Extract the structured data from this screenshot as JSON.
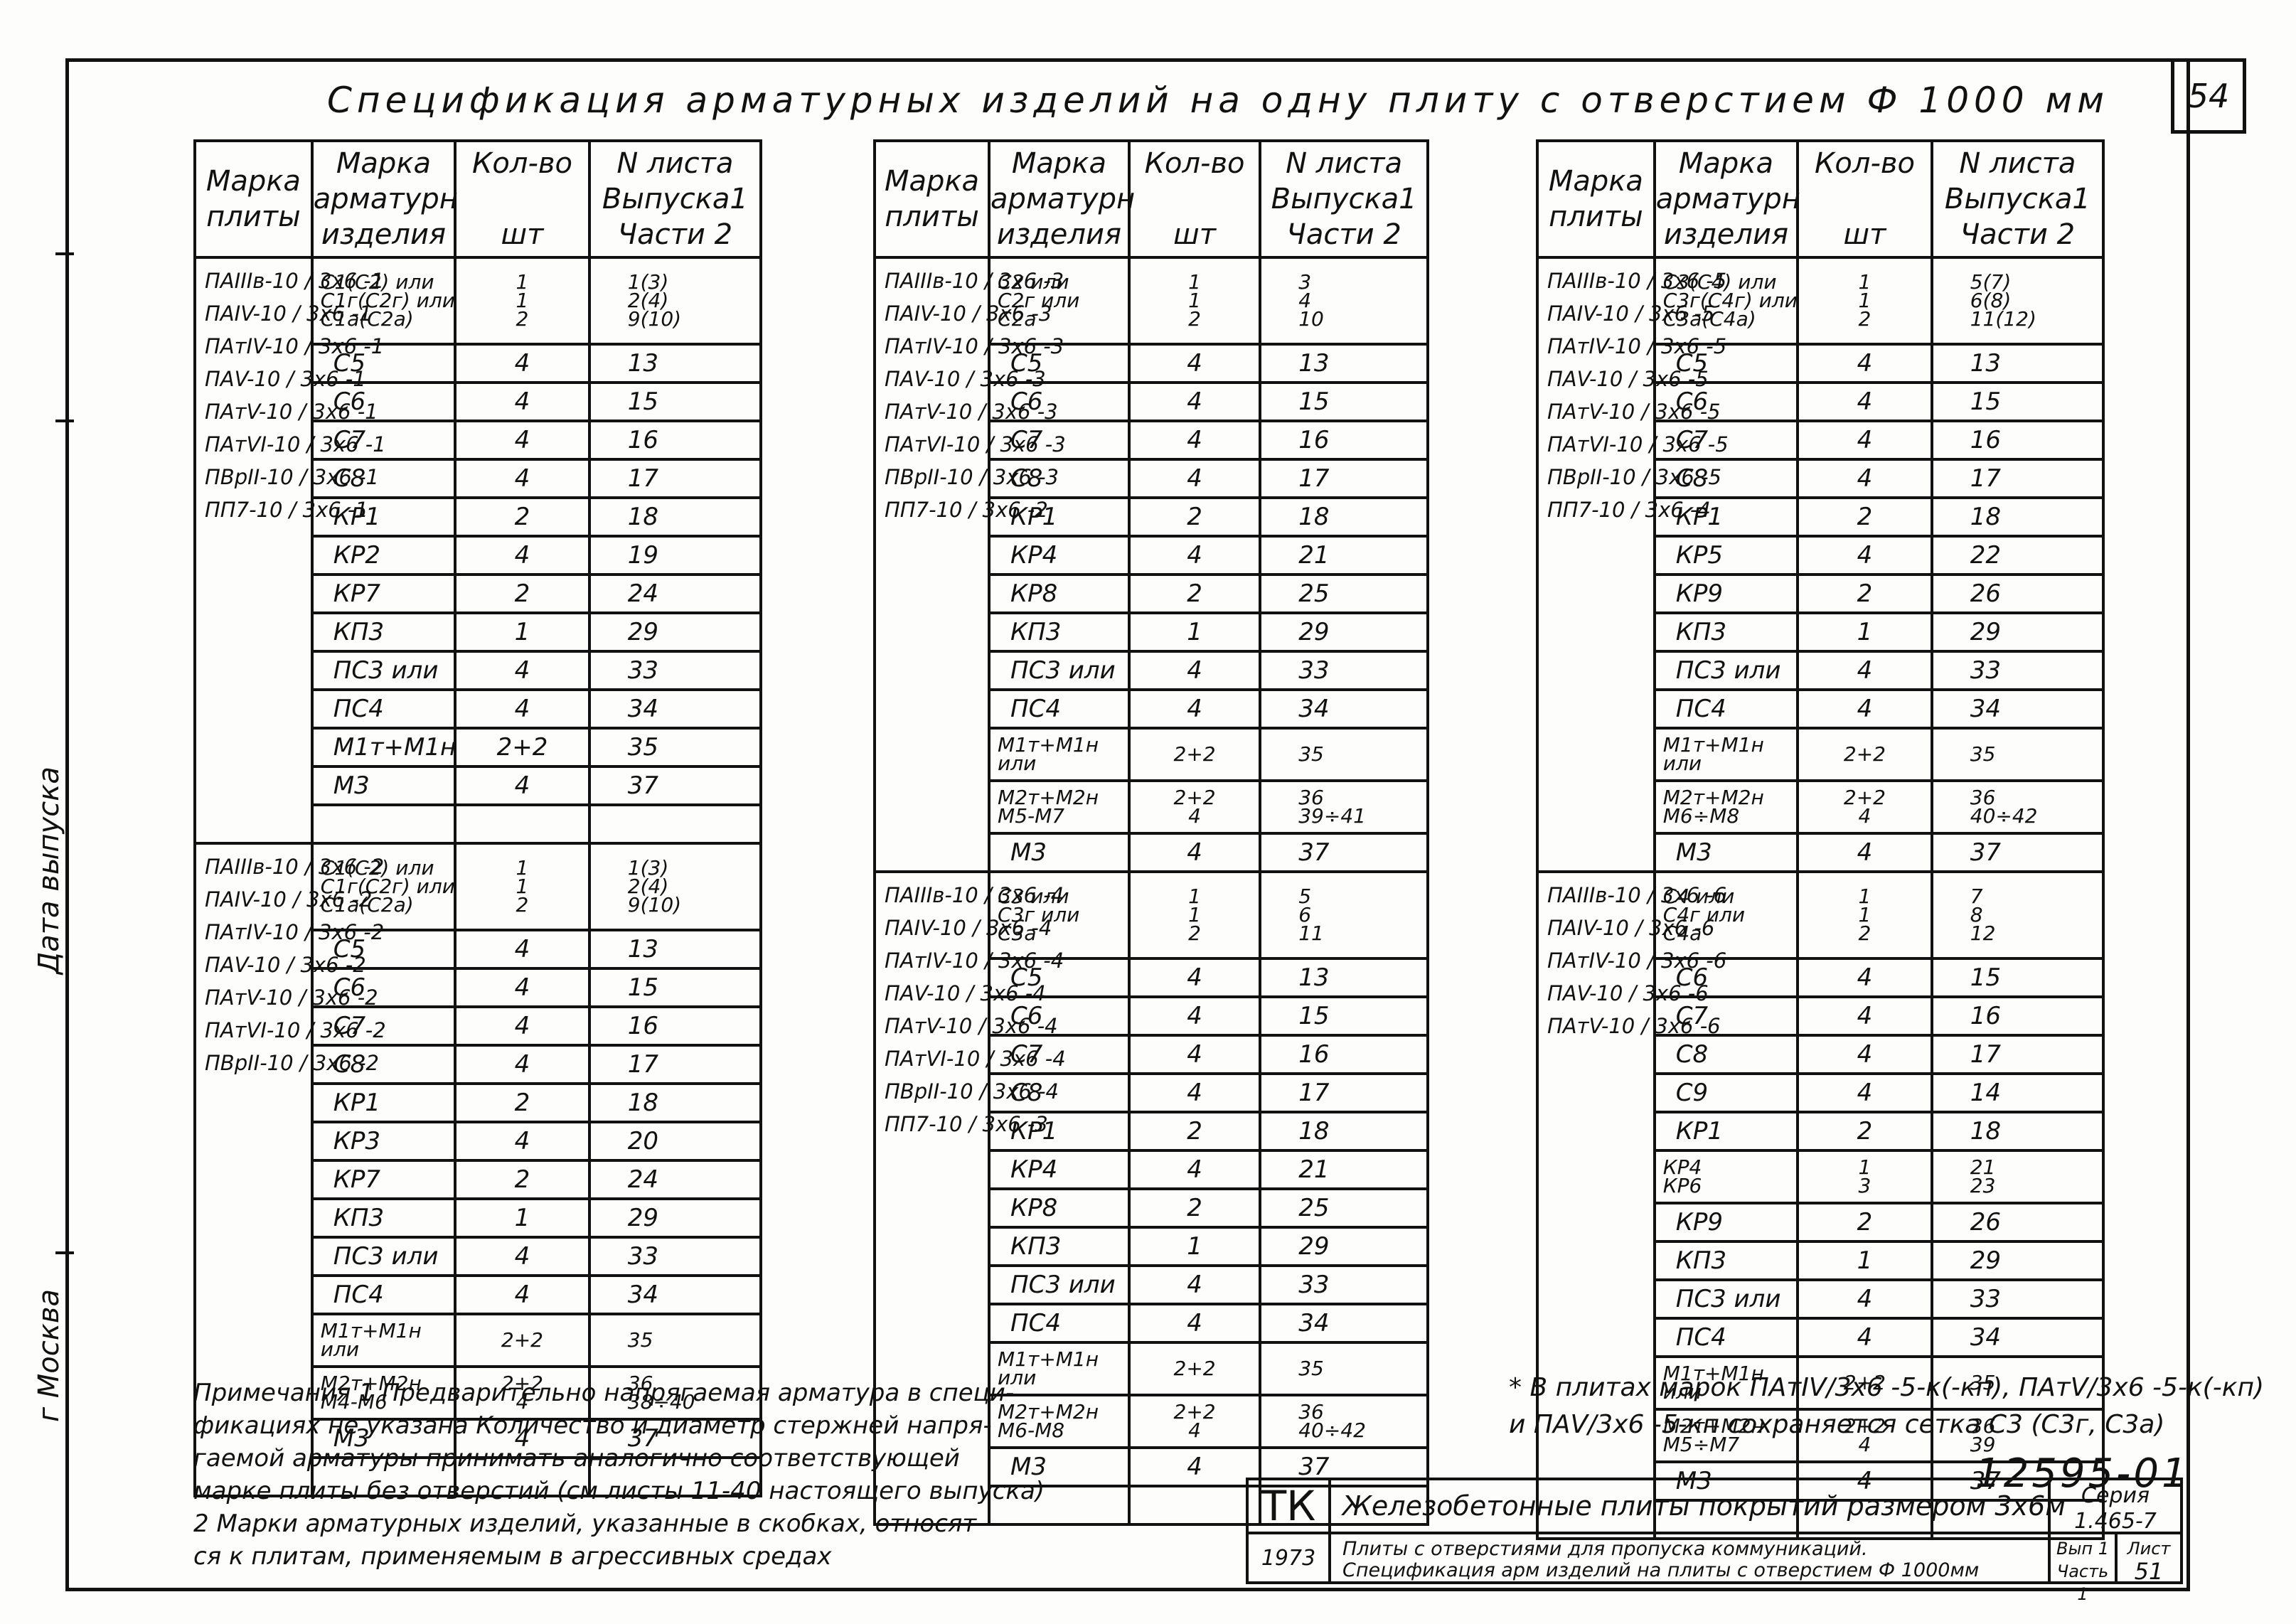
{
  "page_title": "Спецификация арматурных изделий на одну плиту с отверстием Ф 1000 мм",
  "sheet_corner": "54",
  "table_headers": {
    "plate_mark": [
      "Марка",
      "плиты"
    ],
    "rebar_mark": [
      "Марка",
      "арматурн",
      "изделия"
    ],
    "quantity": [
      "Кол-во",
      "шт"
    ],
    "sheet_no": [
      "N листа",
      "Выпуска1",
      "Части 2"
    ]
  },
  "tables": [
    {
      "groups": [
        {
          "plates": [
            "ПАIIIв-10 / 3х6 -1",
            "ПАIV-10 / 3х6 -1",
            "ПАтIV-10 / 3х6 -1",
            "ПАV-10 / 3х6 -1",
            "ПАтV-10 / 3х6 -1",
            "ПАтVI-10 / 3х6 -1",
            "ПВрII-10 / 3х6 -1",
            "ПП7-10 / 3х6 -1"
          ],
          "rows": [
            {
              "mark": "С1(С2) или\nС1г(С2г) или\nС1а(С2а)",
              "qty": "1\n1\n2",
              "sheet": "1(3)\n2(4)\n9(10)",
              "h": 3
            },
            {
              "mark": "С5",
              "qty": "4",
              "sheet": "13"
            },
            {
              "mark": "С6",
              "qty": "4",
              "sheet": "15"
            },
            {
              "mark": "С7",
              "qty": "4",
              "sheet": "16"
            },
            {
              "mark": "С8",
              "qty": "4",
              "sheet": "17"
            },
            {
              "mark": "КР1",
              "qty": "2",
              "sheet": "18"
            },
            {
              "mark": "КР2",
              "qty": "4",
              "sheet": "19"
            },
            {
              "mark": "КР7",
              "qty": "2",
              "sheet": "24"
            },
            {
              "mark": "КП3",
              "qty": "1",
              "sheet": "29"
            },
            {
              "mark": "ПС3 или",
              "qty": "4",
              "sheet": "33"
            },
            {
              "mark": "ПС4",
              "qty": "4",
              "sheet": "34"
            },
            {
              "mark": "М1т+М1н",
              "qty": "2+2",
              "sheet": "35"
            },
            {
              "mark": "М3",
              "qty": "4",
              "sheet": "37"
            },
            {
              "mark": "",
              "qty": "",
              "sheet": ""
            }
          ]
        },
        {
          "plates": [
            "ПАIIIв-10 / 3х6 -2",
            "ПАIV-10 / 3х6 -2",
            "ПАтIV-10 / 3х6 -2",
            "ПАV-10 / 3х6 -2",
            "ПАтV-10 / 3х6 -2",
            "ПАтVI-10 / 3х6 -2",
            "ПВрII-10 / 3х6 -2"
          ],
          "rows": [
            {
              "mark": "С1(С2) или\nС1г(С2г) или\nС1а(С2а)",
              "qty": "1\n1\n2",
              "sheet": "1(3)\n2(4)\n9(10)",
              "h": 3
            },
            {
              "mark": "С5",
              "qty": "4",
              "sheet": "13"
            },
            {
              "mark": "С6",
              "qty": "4",
              "sheet": "15"
            },
            {
              "mark": "С7",
              "qty": "4",
              "sheet": "16"
            },
            {
              "mark": "С8",
              "qty": "4",
              "sheet": "17"
            },
            {
              "mark": "КР1",
              "qty": "2",
              "sheet": "18"
            },
            {
              "mark": "КР3",
              "qty": "4",
              "sheet": "20"
            },
            {
              "mark": "КР7",
              "qty": "2",
              "sheet": "24"
            },
            {
              "mark": "КП3",
              "qty": "1",
              "sheet": "29"
            },
            {
              "mark": "ПС3 или",
              "qty": "4",
              "sheet": "33"
            },
            {
              "mark": "ПС4",
              "qty": "4",
              "sheet": "34"
            },
            {
              "mark": "М1т+М1н\nили",
              "qty": "2+2",
              "sheet": "35"
            },
            {
              "mark": "М2т+М2н\nМ4-М6",
              "qty": "2+2\n4",
              "sheet": "36\n38÷40"
            },
            {
              "mark": "М3",
              "qty": "4",
              "sheet": "37"
            },
            {
              "mark": "",
              "qty": "",
              "sheet": ""
            }
          ]
        }
      ]
    },
    {
      "groups": [
        {
          "plates": [
            "ПАIIIв-10 / 3х6 -3",
            "ПАIV-10 / 3х6 -3",
            "ПАтIV-10 / 3х6 -3",
            "ПАV-10 / 3х6 -3",
            "ПАтV-10 / 3х6 -3",
            "ПАтVI-10 / 3х6 -3",
            "ПВрII-10 / 3х6 -3",
            "ПП7-10 / 3х6 -2"
          ],
          "rows": [
            {
              "mark": "С2 или\nС2г или\nС2а",
              "qty": "1\n1\n2",
              "sheet": "3\n4\n10",
              "h": 3
            },
            {
              "mark": "С5",
              "qty": "4",
              "sheet": "13"
            },
            {
              "mark": "С6",
              "qty": "4",
              "sheet": "15"
            },
            {
              "mark": "С7",
              "qty": "4",
              "sheet": "16"
            },
            {
              "mark": "С8",
              "qty": "4",
              "sheet": "17"
            },
            {
              "mark": "КР1",
              "qty": "2",
              "sheet": "18"
            },
            {
              "mark": "КР4",
              "qty": "4",
              "sheet": "21"
            },
            {
              "mark": "КР8",
              "qty": "2",
              "sheet": "25"
            },
            {
              "mark": "КП3",
              "qty": "1",
              "sheet": "29"
            },
            {
              "mark": "ПС3 или",
              "qty": "4",
              "sheet": "33"
            },
            {
              "mark": "ПС4",
              "qty": "4",
              "sheet": "34"
            },
            {
              "mark": "М1т+М1н\nили",
              "qty": "2+2",
              "sheet": "35"
            },
            {
              "mark": "М2т+М2н\nМ5-М7",
              "qty": "2+2\n4",
              "sheet": "36\n39÷41"
            },
            {
              "mark": "М3",
              "qty": "4",
              "sheet": "37"
            }
          ]
        },
        {
          "plates": [
            "ПАIIIв-10 / 3х6 -4",
            "ПАIV-10 / 3х6 -4",
            "ПАтIV-10 / 3х6 -4",
            "ПАV-10 / 3х6 -4",
            "ПАтV-10 / 3х6 -4",
            "ПАтVI-10 / 3х6 -4",
            "ПВрII-10 / 3х6 -4",
            "ПП7-10 / 3х6 -3"
          ],
          "rows": [
            {
              "mark": "С3 или\nС3г или\nС3а",
              "qty": "1\n1\n2",
              "sheet": "5\n6\n11",
              "h": 3
            },
            {
              "mark": "С5",
              "qty": "4",
              "sheet": "13"
            },
            {
              "mark": "С6",
              "qty": "4",
              "sheet": "15"
            },
            {
              "mark": "С7",
              "qty": "4",
              "sheet": "16"
            },
            {
              "mark": "С8",
              "qty": "4",
              "sheet": "17"
            },
            {
              "mark": "КР1",
              "qty": "2",
              "sheet": "18"
            },
            {
              "mark": "КР4",
              "qty": "4",
              "sheet": "21"
            },
            {
              "mark": "КР8",
              "qty": "2",
              "sheet": "25"
            },
            {
              "mark": "КП3",
              "qty": "1",
              "sheet": "29"
            },
            {
              "mark": "ПС3 или",
              "qty": "4",
              "sheet": "33"
            },
            {
              "mark": "ПС4",
              "qty": "4",
              "sheet": "34"
            },
            {
              "mark": "М1т+М1н\nили",
              "qty": "2+2",
              "sheet": "35"
            },
            {
              "mark": "М2т+М2н\nМ6-М8",
              "qty": "2+2\n4",
              "sheet": "36\n40÷42"
            },
            {
              "mark": "М3",
              "qty": "4",
              "sheet": "37"
            },
            {
              "mark": "",
              "qty": "",
              "sheet": ""
            }
          ]
        }
      ]
    },
    {
      "groups": [
        {
          "plates": [
            "ПАIIIв-10 / 3х6 -5",
            "ПАIV-10 / 3х6 -5",
            "ПАтIV-10 / 3х6 -5",
            "ПАV-10 / 3х6 -5",
            "ПАтV-10 / 3х6 -5",
            "ПАтVI-10 / 3х6 -5",
            "ПВрII-10 / 3х6 -5",
            "ПП7-10 / 3х6 -4"
          ],
          "rows": [
            {
              "mark": "С3(С4) или\nС3г(С4г) или\nС3а(С4а)",
              "qty": "1\n1\n2",
              "sheet": "5(7)\n6(8)\n11(12)",
              "h": 3
            },
            {
              "mark": "С5",
              "qty": "4",
              "sheet": "13"
            },
            {
              "mark": "С6",
              "qty": "4",
              "sheet": "15"
            },
            {
              "mark": "С7",
              "qty": "4",
              "sheet": "16"
            },
            {
              "mark": "С8",
              "qty": "4",
              "sheet": "17"
            },
            {
              "mark": "КР1",
              "qty": "2",
              "sheet": "18"
            },
            {
              "mark": "КР5",
              "qty": "4",
              "sheet": "22"
            },
            {
              "mark": "КР9",
              "qty": "2",
              "sheet": "26"
            },
            {
              "mark": "КП3",
              "qty": "1",
              "sheet": "29"
            },
            {
              "mark": "ПС3 или",
              "qty": "4",
              "sheet": "33"
            },
            {
              "mark": "ПС4",
              "qty": "4",
              "sheet": "34"
            },
            {
              "mark": "М1т+М1н\nили",
              "qty": "2+2",
              "sheet": "35"
            },
            {
              "mark": "М2т+М2н\nМ6÷М8",
              "qty": "2+2\n4",
              "sheet": "36\n40÷42"
            },
            {
              "mark": "М3",
              "qty": "4",
              "sheet": "37"
            }
          ]
        },
        {
          "plates": [
            "ПАIIIв-10 / 3х6 -6",
            "ПАIV-10 / 3х6 -6",
            "ПАтIV-10 / 3х6 -6",
            "ПАV-10 / 3х6 -6",
            "ПАтV-10 / 3х6 -6"
          ],
          "rows": [
            {
              "mark": "С4 или\nС4г или\nС4а",
              "qty": "1\n1\n2",
              "sheet": "7\n8\n12",
              "h": 3
            },
            {
              "mark": "С6",
              "qty": "4",
              "sheet": "15"
            },
            {
              "mark": "С7",
              "qty": "4",
              "sheet": "16"
            },
            {
              "mark": "С8",
              "qty": "4",
              "sheet": "17"
            },
            {
              "mark": "С9",
              "qty": "4",
              "sheet": "14"
            },
            {
              "mark": "КР1",
              "qty": "2",
              "sheet": "18"
            },
            {
              "mark": "КР4\nКР6",
              "qty": "1\n3",
              "sheet": "21\n23"
            },
            {
              "mark": "КР9",
              "qty": "2",
              "sheet": "26"
            },
            {
              "mark": "КП3",
              "qty": "1",
              "sheet": "29"
            },
            {
              "mark": "ПС3 или",
              "qty": "4",
              "sheet": "33"
            },
            {
              "mark": "ПС4",
              "qty": "4",
              "sheet": "34"
            },
            {
              "mark": "М1т+М1н\nили",
              "qty": "2+2",
              "sheet": "35"
            },
            {
              "mark": "М2т+М2н\nМ5÷М7",
              "qty": "2+2\n4",
              "sheet": "36\n39"
            },
            {
              "mark": "М3",
              "qty": "4",
              "sheet": "37"
            },
            {
              "mark": "",
              "qty": "",
              "sheet": ""
            }
          ]
        }
      ]
    }
  ],
  "notes": [
    "Примечания 1 Предварительно напрягаемая арматура в специ-",
    "фикациях не указана Количество и диаметр стержней напря-",
    "гаемой арматуры принимать аналогично соответствующей",
    "марке плиты без отверстий (см листы 11-40 настоящего выпуска)",
    "2 Марки арматурных изделий, указанные в скобках, относят-",
    "ся к плитам, применяемым в агрессивных средах"
  ],
  "footnote": [
    "* В плитах марок ПАтIV/3х6 -5-к(-кп), ПАтV/3х6 -5-к(-кп)",
    "и ПАV/3х6 -5-кп сохраняется сетка С3 (С3г, С3а)"
  ],
  "doc_number": "12595-01",
  "stamp": {
    "org": "ТК",
    "year": "1973",
    "title": "Железобетонные плиты покрытий размером 3х6м",
    "subtitle_1": "Плиты с отверстиями для пропуска коммуникаций.",
    "subtitle_2": "Спецификация арм изделий на плиты с отверстием Ф 1000мм",
    "series_label": "Серия",
    "series_value": "1.465-7",
    "issue": "Вып 1",
    "part": "Часть 1",
    "sheet_label": "Лист",
    "sheet_value": "51"
  },
  "side_labels": [
    "Дата выпуска",
    "г Москва"
  ]
}
